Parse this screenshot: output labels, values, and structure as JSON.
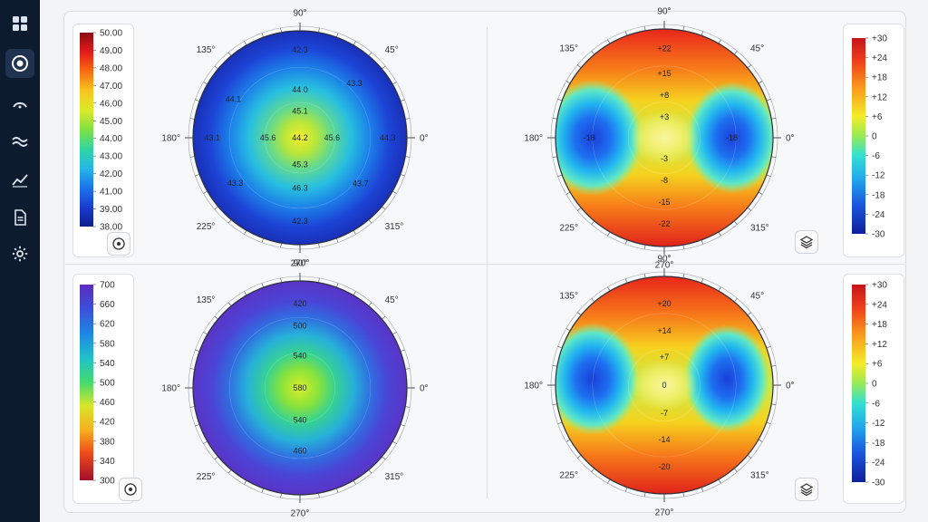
{
  "nav": {
    "items": [
      {
        "name": "dashboard-icon",
        "active": false
      },
      {
        "name": "target-icon",
        "active": true
      },
      {
        "name": "arc-icon",
        "active": false
      },
      {
        "name": "waves-icon",
        "active": false
      },
      {
        "name": "trend-icon",
        "active": false
      },
      {
        "name": "document-icon",
        "active": false
      },
      {
        "name": "gear-icon",
        "active": false
      }
    ]
  },
  "angles": [
    "90°",
    "45°",
    "0°",
    "315°",
    "270°",
    "225°",
    "180°",
    "135°"
  ],
  "maps": [
    {
      "id": "top-left",
      "legend": [
        "50.00",
        "49.00",
        "48.00",
        "47.00",
        "46.00",
        "45.00",
        "44.00",
        "43.00",
        "42.00",
        "41.00",
        "39.00",
        "38.00"
      ],
      "values": [
        {
          "t": "42.3",
          "r": 0.82,
          "a": 90
        },
        {
          "t": "43.3",
          "r": 0.72,
          "a": 45
        },
        {
          "t": "44.1",
          "r": 0.72,
          "a": 150
        },
        {
          "t": "44.0",
          "r": 0.45,
          "a": 90
        },
        {
          "t": "45.1",
          "r": 0.25,
          "a": 90
        },
        {
          "t": "45.6",
          "r": 0.3,
          "a": 0
        },
        {
          "t": "45.6",
          "r": 0.3,
          "a": 180
        },
        {
          "t": "44.2",
          "r": 0.0,
          "a": 0
        },
        {
          "t": "44.3",
          "r": 0.82,
          "a": 0
        },
        {
          "t": "43.1",
          "r": 0.82,
          "a": 180
        },
        {
          "t": "45.3",
          "r": 0.25,
          "a": 270
        },
        {
          "t": "46.3",
          "r": 0.47,
          "a": 270
        },
        {
          "t": "43.3",
          "r": 0.74,
          "a": 215
        },
        {
          "t": "43.7",
          "r": 0.71,
          "a": 323
        },
        {
          "t": "42.3",
          "r": 0.78,
          "a": 270
        }
      ],
      "tool": "target-icon"
    },
    {
      "id": "top-right",
      "legend": [
        "+30",
        "+24",
        "+18",
        "+12",
        "+6",
        "0",
        "-6",
        "-12",
        "-18",
        "-24",
        "-30"
      ],
      "values": [
        {
          "t": "+22",
          "r": 0.82,
          "a": 90
        },
        {
          "t": "+15",
          "r": 0.59,
          "a": 90
        },
        {
          "t": "+8",
          "r": 0.39,
          "a": 90
        },
        {
          "t": "+3",
          "r": 0.19,
          "a": 90
        },
        {
          "t": "-18",
          "r": 0.69,
          "a": 180
        },
        {
          "t": "-18",
          "r": 0.62,
          "a": 0
        },
        {
          "t": "-3",
          "r": 0.19,
          "a": 270
        },
        {
          "t": "-8",
          "r": 0.39,
          "a": 270
        },
        {
          "t": "-15",
          "r": 0.59,
          "a": 270
        },
        {
          "t": "-22",
          "r": 0.79,
          "a": 270
        }
      ],
      "tool": "layers-icon"
    },
    {
      "id": "bottom-left",
      "legend": [
        "700",
        "660",
        "620",
        "580",
        "540",
        "500",
        "460",
        "420",
        "380",
        "340",
        "300"
      ],
      "values": [
        {
          "t": "420",
          "r": 0.79,
          "a": 90
        },
        {
          "t": "500",
          "r": 0.58,
          "a": 90
        },
        {
          "t": "540",
          "r": 0.3,
          "a": 90
        },
        {
          "t": "580",
          "r": 0.0,
          "a": 0
        },
        {
          "t": "540",
          "r": 0.3,
          "a": 270
        },
        {
          "t": "460",
          "r": 0.59,
          "a": 270
        }
      ],
      "tool": "target-icon"
    },
    {
      "id": "bottom-right",
      "legend": [
        "+30",
        "+24",
        "+18",
        "+12",
        "+6",
        "0",
        "-6",
        "-12",
        "-18",
        "-24",
        "-30"
      ],
      "values": [
        {
          "t": "+20",
          "r": 0.75,
          "a": 90
        },
        {
          "t": "+14",
          "r": 0.5,
          "a": 90
        },
        {
          "t": "+7",
          "r": 0.26,
          "a": 90
        },
        {
          "t": "0",
          "r": 0.0,
          "a": 0
        },
        {
          "t": "-7",
          "r": 0.26,
          "a": 270
        },
        {
          "t": "-14",
          "r": 0.5,
          "a": 270
        },
        {
          "t": "-20",
          "r": 0.75,
          "a": 270
        }
      ],
      "tool": "layers-icon"
    }
  ]
}
